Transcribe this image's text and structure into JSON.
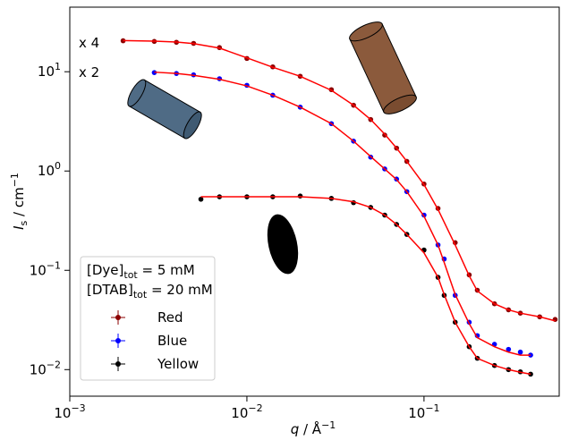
{
  "chart_data": {
    "type": "scatter",
    "x_label": {
      "main": "q",
      "rest": " / Å",
      "sup": "−1"
    },
    "y_label": {
      "main": "I",
      "sub": "s",
      "rest": " / cm",
      "sup": "−1"
    },
    "xlog": true,
    "ylog": true,
    "xlim": [
      0.001,
      0.58
    ],
    "ylim": [
      0.0054,
      44.7
    ],
    "xticks": [
      {
        "value": 0.001,
        "label": "10",
        "exponent": "−3"
      },
      {
        "value": 0.01,
        "label": "10",
        "exponent": "−2"
      },
      {
        "value": 0.1,
        "label": "10",
        "exponent": "−1"
      }
    ],
    "yticks": [
      {
        "value": 0.01,
        "label": "10",
        "exponent": "−2"
      },
      {
        "value": 0.1,
        "label": "10",
        "exponent": "−1"
      },
      {
        "value": 1,
        "label": "10",
        "exponent": "0"
      },
      {
        "value": 10,
        "label": "10",
        "exponent": "1"
      }
    ],
    "fit_color": "#ff0000",
    "legend_position": "lower left",
    "legend_title_lines": [
      [
        "[Dye]",
        "tot",
        " = 5 mM"
      ],
      [
        "[DTAB]",
        "tot",
        " = 20 mM"
      ]
    ],
    "annotations": [
      {
        "text": "x 4",
        "color": "#8b0000"
      },
      {
        "text": "x 2",
        "color": "#0000ff"
      }
    ],
    "series": [
      {
        "name": "Red",
        "color": "#8b0000",
        "x": [
          0.002,
          0.003,
          0.004,
          0.005,
          0.007,
          0.01,
          0.014,
          0.02,
          0.03,
          0.04,
          0.05,
          0.06,
          0.07,
          0.08,
          0.1,
          0.12,
          0.15,
          0.18,
          0.2,
          0.25,
          0.3,
          0.35,
          0.45,
          0.55
        ],
        "values": [
          20.5,
          20.2,
          19.8,
          19.3,
          17.5,
          13.6,
          11.2,
          9.0,
          6.6,
          4.6,
          3.3,
          2.3,
          1.7,
          1.25,
          0.74,
          0.42,
          0.19,
          0.09,
          0.063,
          0.046,
          0.04,
          0.037,
          0.034,
          0.032
        ],
        "fit": [
          20.6,
          20.3,
          19.9,
          19.2,
          17.3,
          13.8,
          11.1,
          9.0,
          6.5,
          4.6,
          3.3,
          2.35,
          1.7,
          1.25,
          0.73,
          0.41,
          0.18,
          0.088,
          0.062,
          0.046,
          0.04,
          0.037,
          0.034,
          0.031
        ]
      },
      {
        "name": "Blue",
        "color": "#0000ff",
        "x": [
          0.003,
          0.004,
          0.005,
          0.007,
          0.01,
          0.014,
          0.02,
          0.03,
          0.04,
          0.05,
          0.06,
          0.07,
          0.08,
          0.1,
          0.12,
          0.13,
          0.15,
          0.18,
          0.2,
          0.25,
          0.3,
          0.35,
          0.4
        ],
        "values": [
          9.8,
          9.6,
          9.3,
          8.5,
          7.3,
          5.8,
          4.4,
          3.0,
          2.0,
          1.38,
          1.05,
          0.83,
          0.62,
          0.36,
          0.18,
          0.13,
          0.056,
          0.03,
          0.022,
          0.018,
          0.016,
          0.015,
          0.014
        ],
        "fit": [
          9.9,
          9.6,
          9.2,
          8.4,
          7.2,
          5.8,
          4.4,
          3.0,
          2.0,
          1.4,
          1.05,
          0.82,
          0.62,
          0.35,
          0.18,
          0.12,
          0.057,
          0.029,
          0.021,
          0.017,
          0.015,
          0.014,
          0.014
        ]
      },
      {
        "name": "Yellow",
        "color": "#000000",
        "x": [
          0.0055,
          0.007,
          0.01,
          0.014,
          0.02,
          0.03,
          0.04,
          0.05,
          0.06,
          0.07,
          0.08,
          0.1,
          0.12,
          0.13,
          0.15,
          0.18,
          0.2,
          0.25,
          0.3,
          0.35,
          0.4
        ],
        "values": [
          0.52,
          0.55,
          0.55,
          0.55,
          0.56,
          0.53,
          0.48,
          0.43,
          0.36,
          0.29,
          0.23,
          0.16,
          0.085,
          0.056,
          0.03,
          0.017,
          0.013,
          0.011,
          0.01,
          0.0095,
          0.009
        ],
        "fit": [
          0.55,
          0.55,
          0.55,
          0.55,
          0.55,
          0.53,
          0.49,
          0.43,
          0.36,
          0.29,
          0.23,
          0.15,
          0.085,
          0.057,
          0.03,
          0.017,
          0.013,
          0.011,
          0.01,
          0.0094,
          0.009
        ]
      }
    ]
  }
}
